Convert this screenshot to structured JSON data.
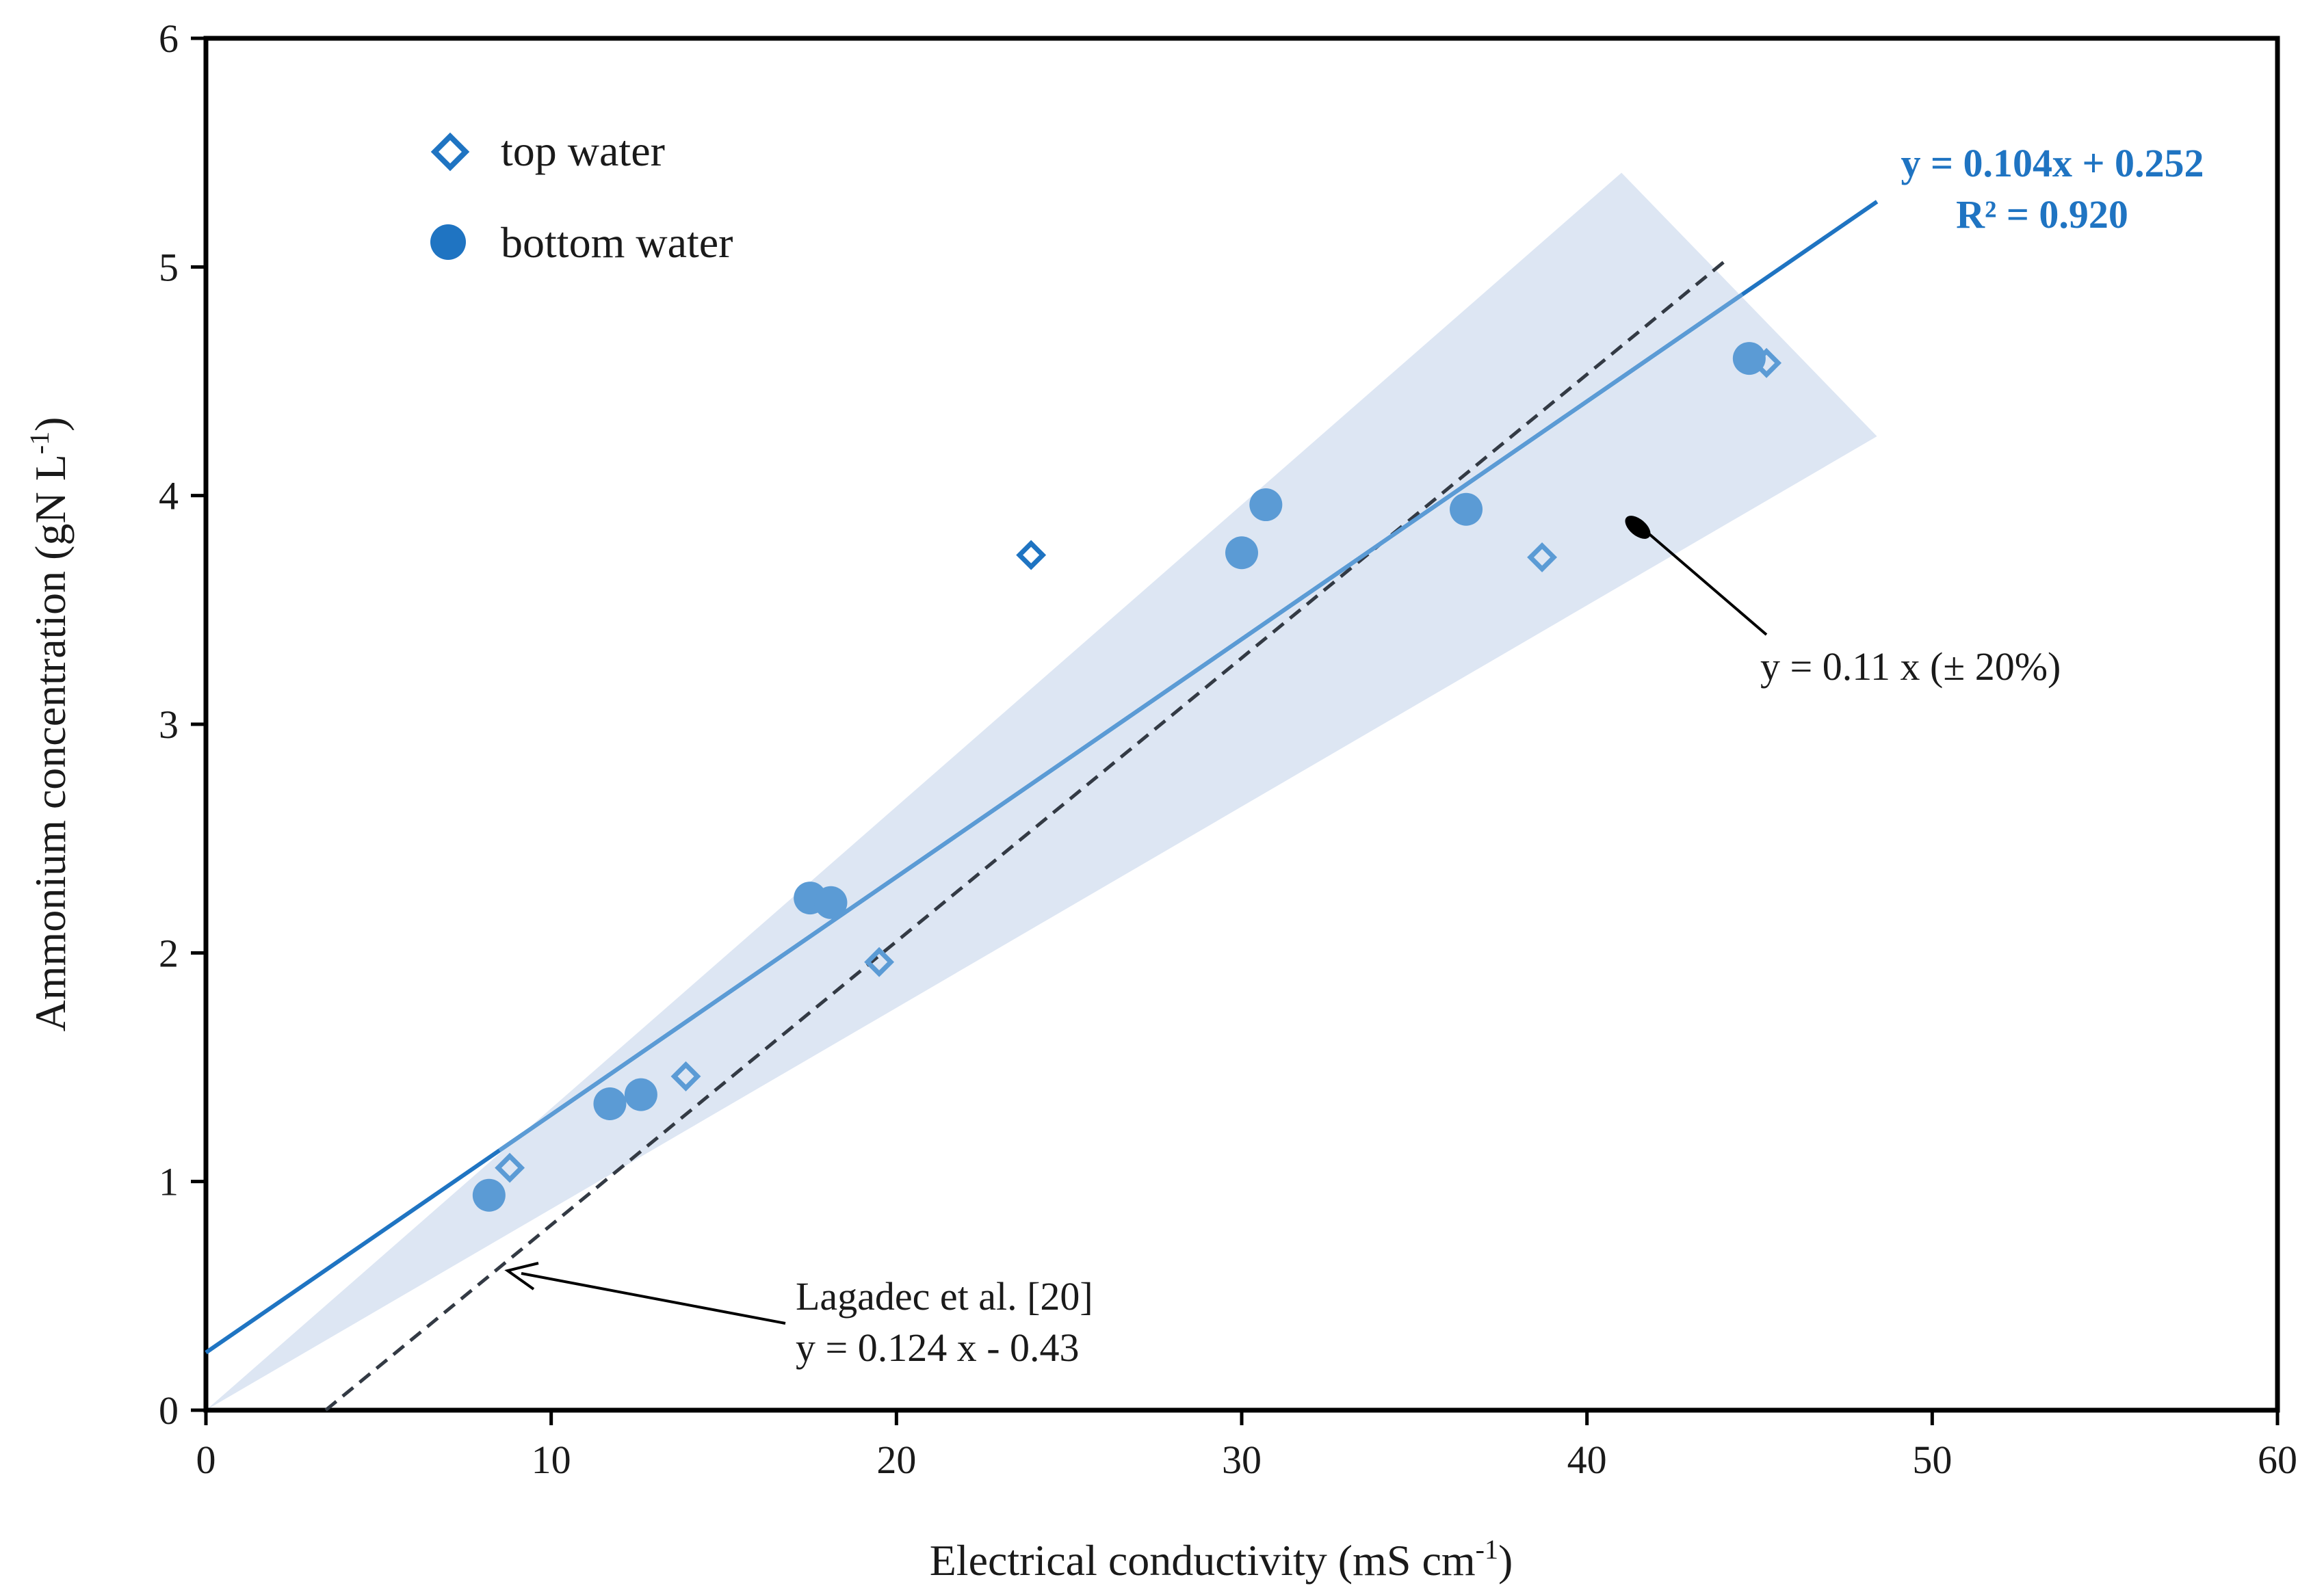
{
  "chart_data": {
    "type": "scatter",
    "title": "",
    "xlabel": "Electrical conductivity (mS cm",
    "xlabel_sup": "-1",
    "xlabel_end": ")",
    "ylabel": "Ammonium concentration  (gN L",
    "ylabel_sup": "-1",
    "ylabel_end": ")",
    "xlim": [
      0,
      60
    ],
    "ylim": [
      0,
      6
    ],
    "x_ticks": [
      "0",
      "10",
      "20",
      "30",
      "40",
      "50",
      "60"
    ],
    "y_ticks": [
      "0",
      "1",
      "2",
      "3",
      "4",
      "5",
      "6"
    ],
    "grid": false,
    "legend_position": "top-left",
    "series": [
      {
        "name": "top water",
        "marker": "hollow-diamond",
        "color": "#5b9bd5",
        "points": [
          {
            "x": 8.8,
            "y": 1.06
          },
          {
            "x": 13.9,
            "y": 1.46
          },
          {
            "x": 19.5,
            "y": 1.96
          },
          {
            "x": 23.9,
            "y": 3.74
          },
          {
            "x": 38.7,
            "y": 3.73
          },
          {
            "x": 45.2,
            "y": 4.58
          }
        ]
      },
      {
        "name": "bottom water",
        "marker": "filled-circle",
        "color": "#5b9bd5",
        "points": [
          {
            "x": 8.2,
            "y": 0.94
          },
          {
            "x": 11.7,
            "y": 1.34
          },
          {
            "x": 12.6,
            "y": 1.38
          },
          {
            "x": 17.5,
            "y": 2.24
          },
          {
            "x": 18.1,
            "y": 2.22
          },
          {
            "x": 30.0,
            "y": 3.75
          },
          {
            "x": 30.7,
            "y": 3.96
          },
          {
            "x": 36.5,
            "y": 3.94
          },
          {
            "x": 44.7,
            "y": 4.6
          }
        ]
      }
    ],
    "fit_line": {
      "equation": "y = 0.104x + 0.252",
      "r2": "R² = 0.920",
      "slope": 0.104,
      "intercept": 0.252,
      "x_range": [
        0,
        48.4
      ],
      "color": "#1f74c2"
    },
    "band": {
      "label": "y = 0.11 x (± 20%)",
      "slope": 0.11,
      "tolerance": 0.2,
      "x_range": [
        0,
        48.4
      ],
      "upper_x_max": 41,
      "color": "#dde6f3"
    },
    "reference_line": {
      "label_line1": "Lagadec et al. [20]",
      "label_line2": "y = 0.124 x - 0.43",
      "slope": 0.124,
      "intercept": -0.43,
      "x_range": [
        3.47,
        44.1
      ],
      "color": "#333a44"
    }
  }
}
